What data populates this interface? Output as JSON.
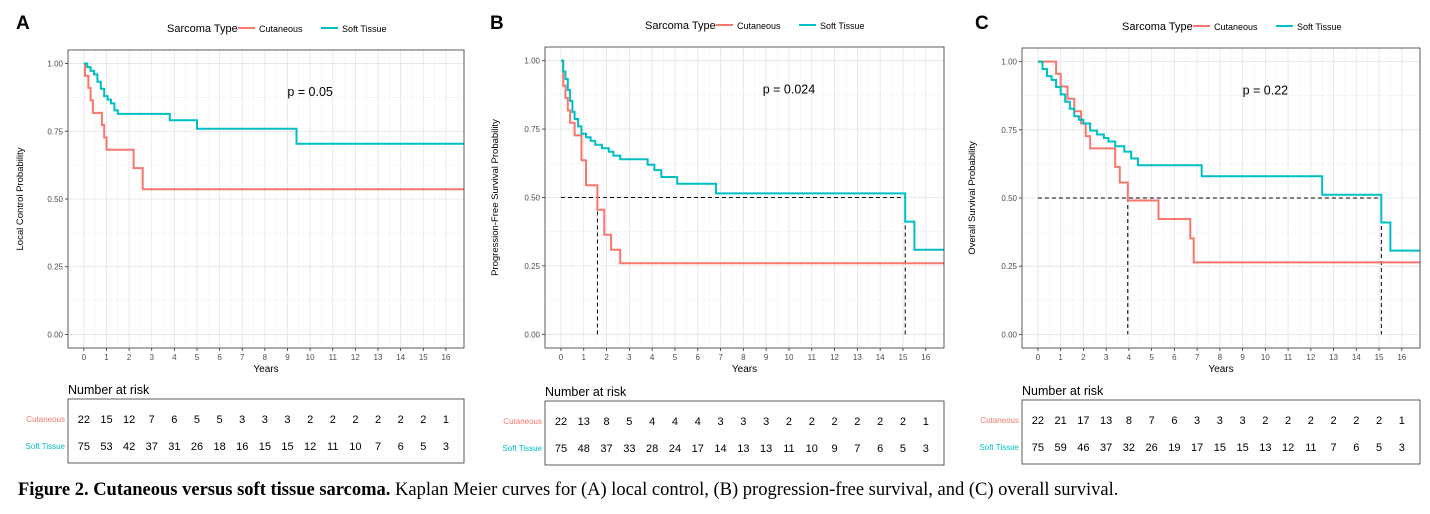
{
  "colors": {
    "cutaneous": "#F8766D",
    "soft_tissue": "#00BFC4",
    "grid_minor": "#f2f2f2",
    "grid_major": "#e4e4e4",
    "median_line": "#000000"
  },
  "legend": {
    "title": "Sarcoma Type",
    "items": [
      "Cutaneous",
      "Soft Tissue"
    ]
  },
  "risk_table_title": "Number at risk",
  "caption": {
    "bold": "Figure 2. Cutaneous versus soft tissue sarcoma.",
    "rest": " Kaplan Meier curves for (A) local control, (B) progression-free survival, and (C) overall survival."
  },
  "chart_data": [
    {
      "panel_label": "A",
      "type": "line",
      "step": true,
      "xlabel": "Years",
      "ylabel": "Local Control Probability",
      "xlim": [
        -0.7,
        16.8
      ],
      "ylim": [
        -0.05,
        1.05
      ],
      "xticks": [
        0,
        1,
        2,
        3,
        4,
        5,
        6,
        7,
        8,
        9,
        10,
        11,
        12,
        13,
        14,
        15,
        16
      ],
      "yticks": [
        0.0,
        0.25,
        0.5,
        0.75,
        1.0
      ],
      "ytick_labels": [
        "0.00",
        "0.25",
        "0.50",
        "0.75",
        "1.00"
      ],
      "grid": true,
      "legend_position": "top",
      "pvalue": "p = 0.05",
      "pvalue_pos": [
        10.0,
        0.88
      ],
      "series": [
        {
          "name": "Cutaneous",
          "points": [
            [
              0,
              1.0
            ],
            [
              0.05,
              0.955
            ],
            [
              0.2,
              0.91
            ],
            [
              0.3,
              0.864
            ],
            [
              0.4,
              0.818
            ],
            [
              0.8,
              0.773
            ],
            [
              0.9,
              0.727
            ],
            [
              1.0,
              0.682
            ],
            [
              2.2,
              0.614
            ],
            [
              2.6,
              0.536
            ],
            [
              16.8,
              0.536
            ]
          ]
        },
        {
          "name": "Soft Tissue",
          "points": [
            [
              0,
              1.0
            ],
            [
              0.15,
              0.987
            ],
            [
              0.3,
              0.973
            ],
            [
              0.45,
              0.96
            ],
            [
              0.6,
              0.933
            ],
            [
              0.75,
              0.907
            ],
            [
              0.9,
              0.88
            ],
            [
              1.05,
              0.867
            ],
            [
              1.2,
              0.853
            ],
            [
              1.35,
              0.827
            ],
            [
              1.5,
              0.814
            ],
            [
              3.8,
              0.791
            ],
            [
              5.0,
              0.759
            ],
            [
              9.4,
              0.704
            ],
            [
              16.8,
              0.704
            ]
          ]
        }
      ],
      "risk_table": {
        "Cutaneous": [
          "22",
          "15",
          "12",
          "7",
          "6",
          "5",
          "5",
          "3",
          "3",
          "3",
          "2",
          "2",
          "2",
          "2",
          "2",
          "2",
          "1"
        ],
        "Soft Tissue": [
          "75",
          "53",
          "42",
          "37",
          "31",
          "26",
          "18",
          "16",
          "15",
          "15",
          "12",
          "11",
          "10",
          "7",
          "6",
          "5",
          "3"
        ]
      }
    },
    {
      "panel_label": "B",
      "type": "line",
      "step": true,
      "xlabel": "Years",
      "ylabel": "Progression-Free Survival Probability",
      "xlim": [
        -0.7,
        16.8
      ],
      "ylim": [
        -0.05,
        1.05
      ],
      "xticks": [
        0,
        1,
        2,
        3,
        4,
        5,
        6,
        7,
        8,
        9,
        10,
        11,
        12,
        13,
        14,
        15,
        16
      ],
      "yticks": [
        0.0,
        0.25,
        0.5,
        0.75,
        1.0
      ],
      "ytick_labels": [
        "0.00",
        "0.25",
        "0.50",
        "0.75",
        "1.00"
      ],
      "grid": true,
      "legend_position": "top",
      "pvalue": "p = 0.024",
      "pvalue_pos": [
        10.0,
        0.88
      ],
      "median_lines": [
        [
          1.6,
          0.5
        ],
        [
          15.1,
          0.5
        ]
      ],
      "series": [
        {
          "name": "Cutaneous",
          "points": [
            [
              0,
              1.0
            ],
            [
              0.1,
              0.909
            ],
            [
              0.2,
              0.864
            ],
            [
              0.3,
              0.818
            ],
            [
              0.4,
              0.773
            ],
            [
              0.6,
              0.727
            ],
            [
              0.9,
              0.636
            ],
            [
              1.1,
              0.545
            ],
            [
              1.6,
              0.455
            ],
            [
              1.9,
              0.364
            ],
            [
              2.2,
              0.309
            ],
            [
              2.6,
              0.26
            ],
            [
              16.8,
              0.26
            ]
          ]
        },
        {
          "name": "Soft Tissue",
          "points": [
            [
              0,
              1.0
            ],
            [
              0.1,
              0.96
            ],
            [
              0.2,
              0.933
            ],
            [
              0.3,
              0.893
            ],
            [
              0.4,
              0.853
            ],
            [
              0.5,
              0.813
            ],
            [
              0.6,
              0.787
            ],
            [
              0.75,
              0.76
            ],
            [
              0.9,
              0.733
            ],
            [
              1.1,
              0.72
            ],
            [
              1.3,
              0.707
            ],
            [
              1.5,
              0.693
            ],
            [
              1.8,
              0.68
            ],
            [
              2.1,
              0.667
            ],
            [
              2.3,
              0.653
            ],
            [
              2.6,
              0.64
            ],
            [
              3.8,
              0.62
            ],
            [
              4.1,
              0.6
            ],
            [
              4.4,
              0.575
            ],
            [
              5.1,
              0.55
            ],
            [
              6.8,
              0.515
            ],
            [
              15.1,
              0.412
            ],
            [
              15.5,
              0.309
            ],
            [
              16.8,
              0.309
            ]
          ]
        }
      ],
      "risk_table": {
        "Cutaneous": [
          "22",
          "13",
          "8",
          "5",
          "4",
          "4",
          "4",
          "3",
          "3",
          "3",
          "2",
          "2",
          "2",
          "2",
          "2",
          "2",
          "1"
        ],
        "Soft Tissue": [
          "75",
          "48",
          "37",
          "33",
          "28",
          "24",
          "17",
          "14",
          "13",
          "13",
          "11",
          "10",
          "9",
          "7",
          "6",
          "5",
          "3"
        ]
      }
    },
    {
      "panel_label": "C",
      "type": "line",
      "step": true,
      "xlabel": "Years",
      "ylabel": "Overall Survival Probability",
      "xlim": [
        -0.7,
        16.8
      ],
      "ylim": [
        -0.05,
        1.05
      ],
      "xticks": [
        0,
        1,
        2,
        3,
        4,
        5,
        6,
        7,
        8,
        9,
        10,
        11,
        12,
        13,
        14,
        15,
        16
      ],
      "yticks": [
        0.0,
        0.25,
        0.5,
        0.75,
        1.0
      ],
      "ytick_labels": [
        "0.00",
        "0.25",
        "0.50",
        "0.75",
        "1.00"
      ],
      "grid": true,
      "legend_position": "top",
      "pvalue": "p = 0.22",
      "pvalue_pos": [
        10.0,
        0.88
      ],
      "median_lines": [
        [
          3.95,
          0.5
        ],
        [
          15.1,
          0.5
        ]
      ],
      "series": [
        {
          "name": "Cutaneous",
          "points": [
            [
              0,
              1.0
            ],
            [
              0.8,
              0.955
            ],
            [
              1.0,
              0.909
            ],
            [
              1.3,
              0.864
            ],
            [
              1.6,
              0.818
            ],
            [
              1.9,
              0.773
            ],
            [
              2.1,
              0.727
            ],
            [
              2.3,
              0.682
            ],
            [
              3.4,
              0.614
            ],
            [
              3.6,
              0.557
            ],
            [
              3.95,
              0.491
            ],
            [
              5.3,
              0.423
            ],
            [
              6.7,
              0.352
            ],
            [
              6.85,
              0.264
            ],
            [
              16.8,
              0.264
            ]
          ]
        },
        {
          "name": "Soft Tissue",
          "points": [
            [
              0,
              1.0
            ],
            [
              0.2,
              0.973
            ],
            [
              0.4,
              0.947
            ],
            [
              0.6,
              0.933
            ],
            [
              0.8,
              0.907
            ],
            [
              1.0,
              0.88
            ],
            [
              1.2,
              0.853
            ],
            [
              1.4,
              0.827
            ],
            [
              1.6,
              0.8
            ],
            [
              1.8,
              0.787
            ],
            [
              2.0,
              0.773
            ],
            [
              2.3,
              0.747
            ],
            [
              2.6,
              0.733
            ],
            [
              2.9,
              0.72
            ],
            [
              3.1,
              0.707
            ],
            [
              3.4,
              0.69
            ],
            [
              3.8,
              0.67
            ],
            [
              4.1,
              0.645
            ],
            [
              4.4,
              0.62
            ],
            [
              7.2,
              0.58
            ],
            [
              12.5,
              0.512
            ],
            [
              15.1,
              0.41
            ],
            [
              15.5,
              0.307
            ],
            [
              16.8,
              0.307
            ]
          ]
        }
      ],
      "risk_table": {
        "Cutaneous": [
          "22",
          "21",
          "17",
          "13",
          "8",
          "7",
          "6",
          "3",
          "3",
          "3",
          "2",
          "2",
          "2",
          "2",
          "2",
          "2",
          "1"
        ],
        "Soft Tissue": [
          "75",
          "59",
          "46",
          "37",
          "32",
          "26",
          "19",
          "17",
          "15",
          "15",
          "13",
          "12",
          "11",
          "7",
          "6",
          "5",
          "3"
        ]
      }
    }
  ]
}
